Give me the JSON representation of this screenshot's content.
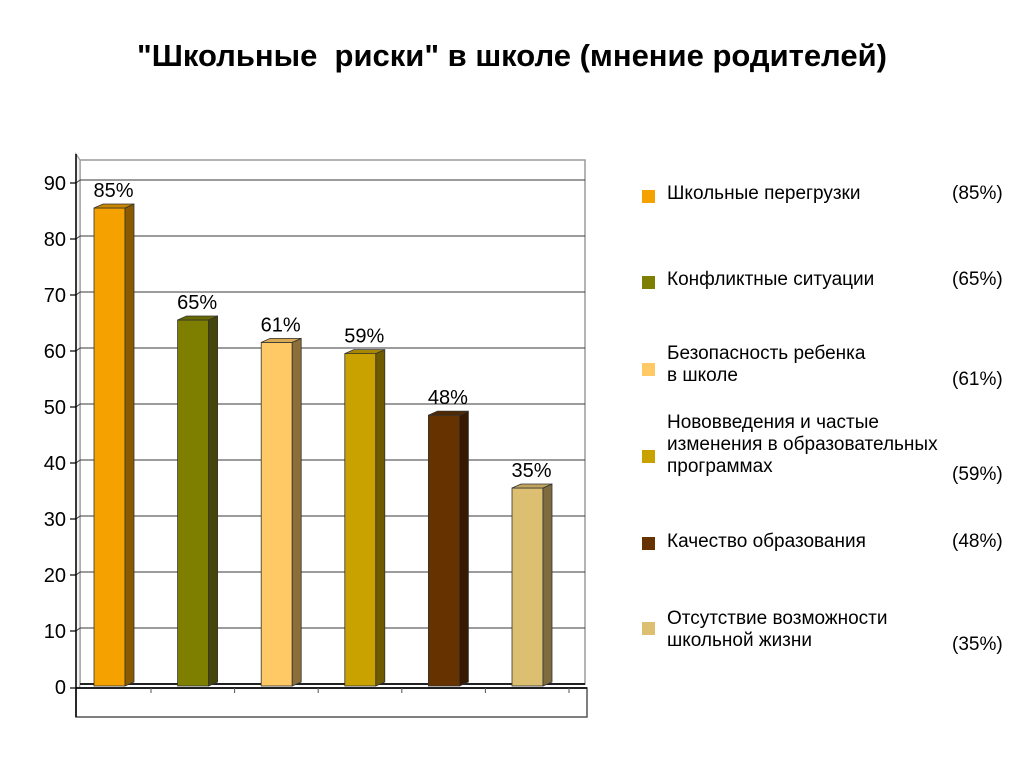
{
  "title": "\"Школьные  риски\" в школе (мнение родителей)",
  "chart_data": {
    "type": "bar",
    "title": "\"Школьные  риски\" в школе (мнение родителей)",
    "xlabel": "",
    "ylabel": "",
    "ylim": [
      0,
      90
    ],
    "yticks": [
      0,
      10,
      20,
      30,
      40,
      50,
      60,
      70,
      80,
      90
    ],
    "grid": true,
    "legend_position": "right",
    "categories": [
      "Школьные перегрузки",
      "Конфликтные ситуации",
      "Безопасность ребенка в школе",
      "Нововведения и частые изменения в образовательных программах",
      "Качество образования",
      "Отсутствие возможности школьной жизни"
    ],
    "values": [
      85,
      65,
      61,
      59,
      48,
      35
    ],
    "data_labels": [
      "85%",
      "65%",
      "61%",
      "59%",
      "48%",
      "35%"
    ],
    "colors": [
      "#F5A200",
      "#7E7E00",
      "#FFC966",
      "#C9A200",
      "#663300",
      "#DDBF72"
    ],
    "side_colors": [
      "#8A5A00",
      "#46460A",
      "#8C6E38",
      "#6F5A00",
      "#381A00",
      "#7E6B3E"
    ],
    "top_colors": [
      "#C98600",
      "#686800",
      "#D9AA55",
      "#A88700",
      "#512800",
      "#BFA35E"
    ]
  },
  "legend": [
    {
      "label": "Школьные перегрузки",
      "value": "(85%)",
      "color": "#F5A200"
    },
    {
      "label": "Конфликтные ситуации",
      "value": "(65%)",
      "color": "#7E7E00"
    },
    {
      "label": "Безопасность ребенка\nв школе",
      "value": "(61%)",
      "color": "#FFC966"
    },
    {
      "label": "Нововведения и частые\nизменения в образовательных\nпрограммах",
      "value": "(59%)",
      "color": "#C9A200"
    },
    {
      "label": "Качество образования",
      "value": "(48%)",
      "color": "#663300"
    },
    {
      "label": "Отсутствие возможности\nшкольной жизни",
      "value": "(35%)",
      "color": "#DDBF72"
    }
  ]
}
